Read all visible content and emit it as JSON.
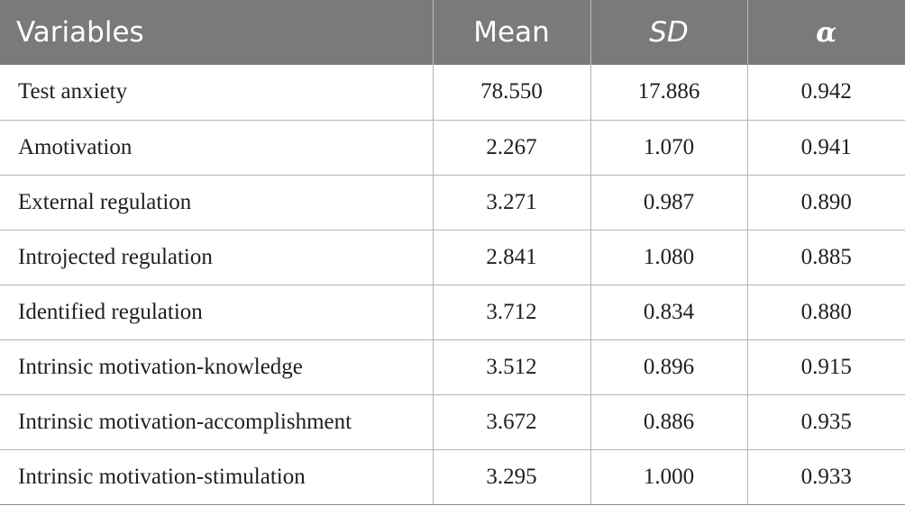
{
  "table": {
    "headers": [
      "Variables",
      "Mean",
      "SD",
      "α"
    ],
    "rows": [
      [
        "Test anxiety",
        "78.550",
        "17.886",
        "0.942"
      ],
      [
        "Amotivation",
        "2.267",
        "1.070",
        "0.941"
      ],
      [
        "External regulation",
        "3.271",
        "0.987",
        "0.890"
      ],
      [
        "Introjected regulation",
        "2.841",
        "1.080",
        "0.885"
      ],
      [
        "Identified regulation",
        "3.712",
        "0.834",
        "0.880"
      ],
      [
        "Intrinsic motivation-knowledge",
        "3.512",
        "0.896",
        "0.915"
      ],
      [
        "Intrinsic motivation-accomplishment",
        "3.672",
        "0.886",
        "0.935"
      ],
      [
        "Intrinsic motivation-stimulation",
        "3.295",
        "1.000",
        "0.933"
      ]
    ]
  },
  "colors": {
    "header_bg": "#7a7b79",
    "header_text": "#ffffff",
    "body_text": "#1f1f1f",
    "grid": "#b3b3b3"
  }
}
